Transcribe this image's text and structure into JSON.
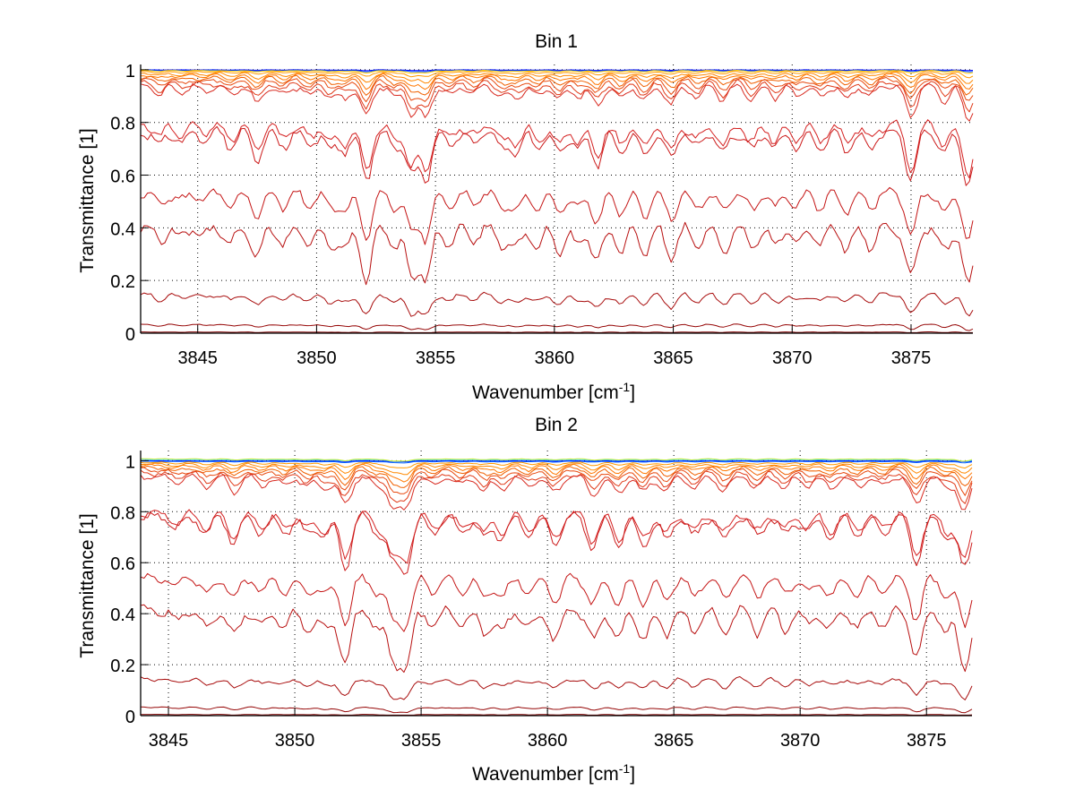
{
  "figure": {
    "background": "#ffffff"
  },
  "chart_data": [
    {
      "type": "line",
      "title": "Bin 1",
      "xlabel": "Wavenumber [cm",
      "xlabel_sup": "-1",
      "xlabel_tail": "]",
      "ylabel": "Transmittance [1]",
      "xlim": [
        3842.6,
        3877.6
      ],
      "ylim": [
        0,
        1.02
      ],
      "xticks": [
        3845,
        3850,
        3855,
        3860,
        3865,
        3870,
        3875
      ],
      "xtick_labels": [
        "3845",
        "3850",
        "3855",
        "3860",
        "3865",
        "3870",
        "3875"
      ],
      "yticks": [
        0,
        0.2,
        0.4,
        0.6,
        0.8,
        1
      ],
      "ytick_labels": [
        "0",
        "0.2",
        "0.4",
        "0.6",
        "0.8",
        "1"
      ],
      "grid": true,
      "absorption_lines": [
        {
          "center": 3843.4,
          "depth": 0.25
        },
        {
          "center": 3844.3,
          "depth": 0.2
        },
        {
          "center": 3845.3,
          "depth": 0.15
        },
        {
          "center": 3846.4,
          "depth": 0.3
        },
        {
          "center": 3847.5,
          "depth": 0.55
        },
        {
          "center": 3848.6,
          "depth": 0.3
        },
        {
          "center": 3849.7,
          "depth": 0.3
        },
        {
          "center": 3850.6,
          "depth": 0.35
        },
        {
          "center": 3851.2,
          "depth": 0.4
        },
        {
          "center": 3852.1,
          "depth": 1.0
        },
        {
          "center": 3853.3,
          "depth": 0.35
        },
        {
          "center": 3854.0,
          "depth": 0.9
        },
        {
          "center": 3854.6,
          "depth": 1.0
        },
        {
          "center": 3855.6,
          "depth": 0.3
        },
        {
          "center": 3856.6,
          "depth": 0.25
        },
        {
          "center": 3857.8,
          "depth": 0.35
        },
        {
          "center": 3858.4,
          "depth": 0.4
        },
        {
          "center": 3859.3,
          "depth": 0.35
        },
        {
          "center": 3860.2,
          "depth": 0.45
        },
        {
          "center": 3861.0,
          "depth": 0.35
        },
        {
          "center": 3861.8,
          "depth": 0.65
        },
        {
          "center": 3862.8,
          "depth": 0.45
        },
        {
          "center": 3863.8,
          "depth": 0.5
        },
        {
          "center": 3864.9,
          "depth": 0.6
        },
        {
          "center": 3866.0,
          "depth": 0.35
        },
        {
          "center": 3867.1,
          "depth": 0.45
        },
        {
          "center": 3868.3,
          "depth": 0.4
        },
        {
          "center": 3869.3,
          "depth": 0.35
        },
        {
          "center": 3870.2,
          "depth": 0.3
        },
        {
          "center": 3871.2,
          "depth": 0.35
        },
        {
          "center": 3872.3,
          "depth": 0.4
        },
        {
          "center": 3873.3,
          "depth": 0.35
        },
        {
          "center": 3875.0,
          "depth": 0.95
        },
        {
          "center": 3876.4,
          "depth": 0.45
        },
        {
          "center": 3877.4,
          "depth": 1.1
        }
      ],
      "series": [
        {
          "name": "s1",
          "baseline": 1.0,
          "strength": 0.003,
          "color": "#0000ff"
        },
        {
          "name": "s2",
          "baseline": 0.999,
          "strength": 0.006,
          "color": "#0050ff"
        },
        {
          "name": "s3",
          "baseline": 0.998,
          "strength": 0.01,
          "color": "#ffcc00"
        },
        {
          "name": "s4",
          "baseline": 0.995,
          "strength": 0.02,
          "color": "#ff9900"
        },
        {
          "name": "s5",
          "baseline": 0.99,
          "strength": 0.035,
          "color": "#ff8800"
        },
        {
          "name": "s6",
          "baseline": 0.985,
          "strength": 0.05,
          "color": "#ff7700"
        },
        {
          "name": "s7",
          "baseline": 0.978,
          "strength": 0.065,
          "color": "#f06000"
        },
        {
          "name": "s8",
          "baseline": 0.97,
          "strength": 0.08,
          "color": "#e84a10"
        },
        {
          "name": "s9",
          "baseline": 0.96,
          "strength": 0.1,
          "color": "#e03a18"
        },
        {
          "name": "s10",
          "baseline": 0.95,
          "strength": 0.12,
          "color": "#d82a20"
        },
        {
          "name": "s11",
          "baseline": 0.805,
          "strength": 0.17,
          "color": "#d42020"
        },
        {
          "name": "s12",
          "baseline": 0.78,
          "strength": 0.18,
          "color": "#cc1a1a"
        },
        {
          "name": "s13",
          "baseline": 0.55,
          "strength": 0.17,
          "color": "#c41414"
        },
        {
          "name": "s14",
          "baseline": 0.42,
          "strength": 0.2,
          "color": "#b81010"
        },
        {
          "name": "s15",
          "baseline": 0.155,
          "strength": 0.08,
          "color": "#a80c0c"
        },
        {
          "name": "s16",
          "baseline": 0.035,
          "strength": 0.02,
          "color": "#960808"
        },
        {
          "name": "s17",
          "baseline": 0.005,
          "strength": 0.004,
          "color": "#800000"
        }
      ]
    },
    {
      "type": "line",
      "title": "Bin 2",
      "xlabel": "Wavenumber [cm",
      "xlabel_sup": "-1",
      "xlabel_tail": "]",
      "ylabel": "Transmittance [1]",
      "xlim": [
        3843.9,
        3876.8
      ],
      "ylim": [
        0,
        1.04
      ],
      "xticks": [
        3845,
        3850,
        3855,
        3860,
        3865,
        3870,
        3875
      ],
      "xtick_labels": [
        "3845",
        "3850",
        "3855",
        "3860",
        "3865",
        "3870",
        "3875"
      ],
      "yticks": [
        0,
        0.2,
        0.4,
        0.6,
        0.8,
        1
      ],
      "ytick_labels": [
        "0",
        "0.2",
        "0.4",
        "0.6",
        "0.8",
        "1"
      ],
      "grid": true,
      "absorption_lines": [
        {
          "center": 3845.3,
          "depth": 0.2
        },
        {
          "center": 3846.5,
          "depth": 0.35
        },
        {
          "center": 3847.6,
          "depth": 0.5
        },
        {
          "center": 3848.7,
          "depth": 0.3
        },
        {
          "center": 3849.6,
          "depth": 0.3
        },
        {
          "center": 3850.5,
          "depth": 0.35
        },
        {
          "center": 3851.2,
          "depth": 0.4
        },
        {
          "center": 3852.0,
          "depth": 1.0
        },
        {
          "center": 3853.3,
          "depth": 0.35
        },
        {
          "center": 3853.9,
          "depth": 0.9
        },
        {
          "center": 3854.4,
          "depth": 1.05
        },
        {
          "center": 3855.5,
          "depth": 0.3
        },
        {
          "center": 3856.6,
          "depth": 0.3
        },
        {
          "center": 3857.5,
          "depth": 0.4
        },
        {
          "center": 3858.2,
          "depth": 0.45
        },
        {
          "center": 3859.3,
          "depth": 0.35
        },
        {
          "center": 3860.3,
          "depth": 0.55
        },
        {
          "center": 3861.8,
          "depth": 0.6
        },
        {
          "center": 3862.8,
          "depth": 0.55
        },
        {
          "center": 3863.8,
          "depth": 0.55
        },
        {
          "center": 3864.7,
          "depth": 0.45
        },
        {
          "center": 3865.8,
          "depth": 0.4
        },
        {
          "center": 3867.0,
          "depth": 0.45
        },
        {
          "center": 3868.3,
          "depth": 0.4
        },
        {
          "center": 3869.4,
          "depth": 0.35
        },
        {
          "center": 3870.3,
          "depth": 0.3
        },
        {
          "center": 3871.2,
          "depth": 0.4
        },
        {
          "center": 3872.3,
          "depth": 0.35
        },
        {
          "center": 3873.3,
          "depth": 0.3
        },
        {
          "center": 3874.6,
          "depth": 0.95
        },
        {
          "center": 3875.8,
          "depth": 0.4
        },
        {
          "center": 3876.5,
          "depth": 1.1
        }
      ],
      "series": [
        {
          "name": "s1",
          "baseline": 1.0,
          "strength": 0.003,
          "color": "#0000ff"
        },
        {
          "name": "s2",
          "baseline": 0.998,
          "strength": 0.005,
          "color": "#0060ff"
        },
        {
          "name": "s3",
          "baseline": 1.005,
          "strength": 0.006,
          "color": "#33ccff"
        },
        {
          "name": "s4",
          "baseline": 1.008,
          "strength": 0.008,
          "color": "#ccee33"
        },
        {
          "name": "s5",
          "baseline": 0.995,
          "strength": 0.02,
          "color": "#ff9900"
        },
        {
          "name": "s6",
          "baseline": 0.99,
          "strength": 0.035,
          "color": "#ff8800"
        },
        {
          "name": "s7",
          "baseline": 0.985,
          "strength": 0.05,
          "color": "#ff7700"
        },
        {
          "name": "s8",
          "baseline": 0.978,
          "strength": 0.065,
          "color": "#f06000"
        },
        {
          "name": "s9",
          "baseline": 0.97,
          "strength": 0.08,
          "color": "#e84a10"
        },
        {
          "name": "s10",
          "baseline": 0.96,
          "strength": 0.1,
          "color": "#e03a18"
        },
        {
          "name": "s11",
          "baseline": 0.95,
          "strength": 0.12,
          "color": "#d82a20"
        },
        {
          "name": "s12",
          "baseline": 0.805,
          "strength": 0.17,
          "color": "#d42020"
        },
        {
          "name": "s13",
          "baseline": 0.795,
          "strength": 0.19,
          "color": "#cc1a1a"
        },
        {
          "name": "s14",
          "baseline": 0.555,
          "strength": 0.17,
          "color": "#c41414"
        },
        {
          "name": "s15",
          "baseline": 0.43,
          "strength": 0.2,
          "color": "#b81010"
        },
        {
          "name": "s16",
          "baseline": 0.15,
          "strength": 0.07,
          "color": "#a80c0c"
        },
        {
          "name": "s17",
          "baseline": 0.035,
          "strength": 0.02,
          "color": "#960808"
        },
        {
          "name": "s18",
          "baseline": 0.005,
          "strength": 0.004,
          "color": "#800000"
        }
      ]
    }
  ]
}
